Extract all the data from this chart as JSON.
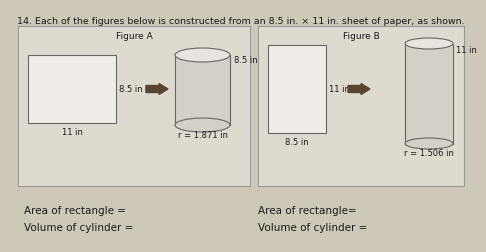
{
  "title": "14. Each of the figures below is constructed from an 8.5 in. × 11 in. sheet of paper, as shown.",
  "fig_a_label": "Figure A",
  "fig_b_label": "Figure B",
  "rect_a_side_label": "8.5 in",
  "rect_a_bottom_label": "11 in",
  "cyl_a_side_label": "8.5 in",
  "cyl_a_r_label": "r = 1.871 in",
  "rect_b_side_label": "11 in",
  "rect_b_bottom_label": "8.5 in",
  "cyl_b_side_label": "11 in",
  "cyl_b_r_label": "r = 1.506 in",
  "area_a_label": "Area of rectangle =",
  "volume_a_label": "Volume of cylinder =",
  "area_b_label": "Area of rectangle=",
  "volume_b_label": "Volume of cylinder =",
  "bg_color": "#cec8b8",
  "box_color": "#dedad0",
  "text_color": "#1a1a1a",
  "arrow_color": "#5a4530",
  "rect_face": "#f0ede8",
  "cyl_face": "#d4d0c8",
  "cyl_top_face": "#e8e4de"
}
